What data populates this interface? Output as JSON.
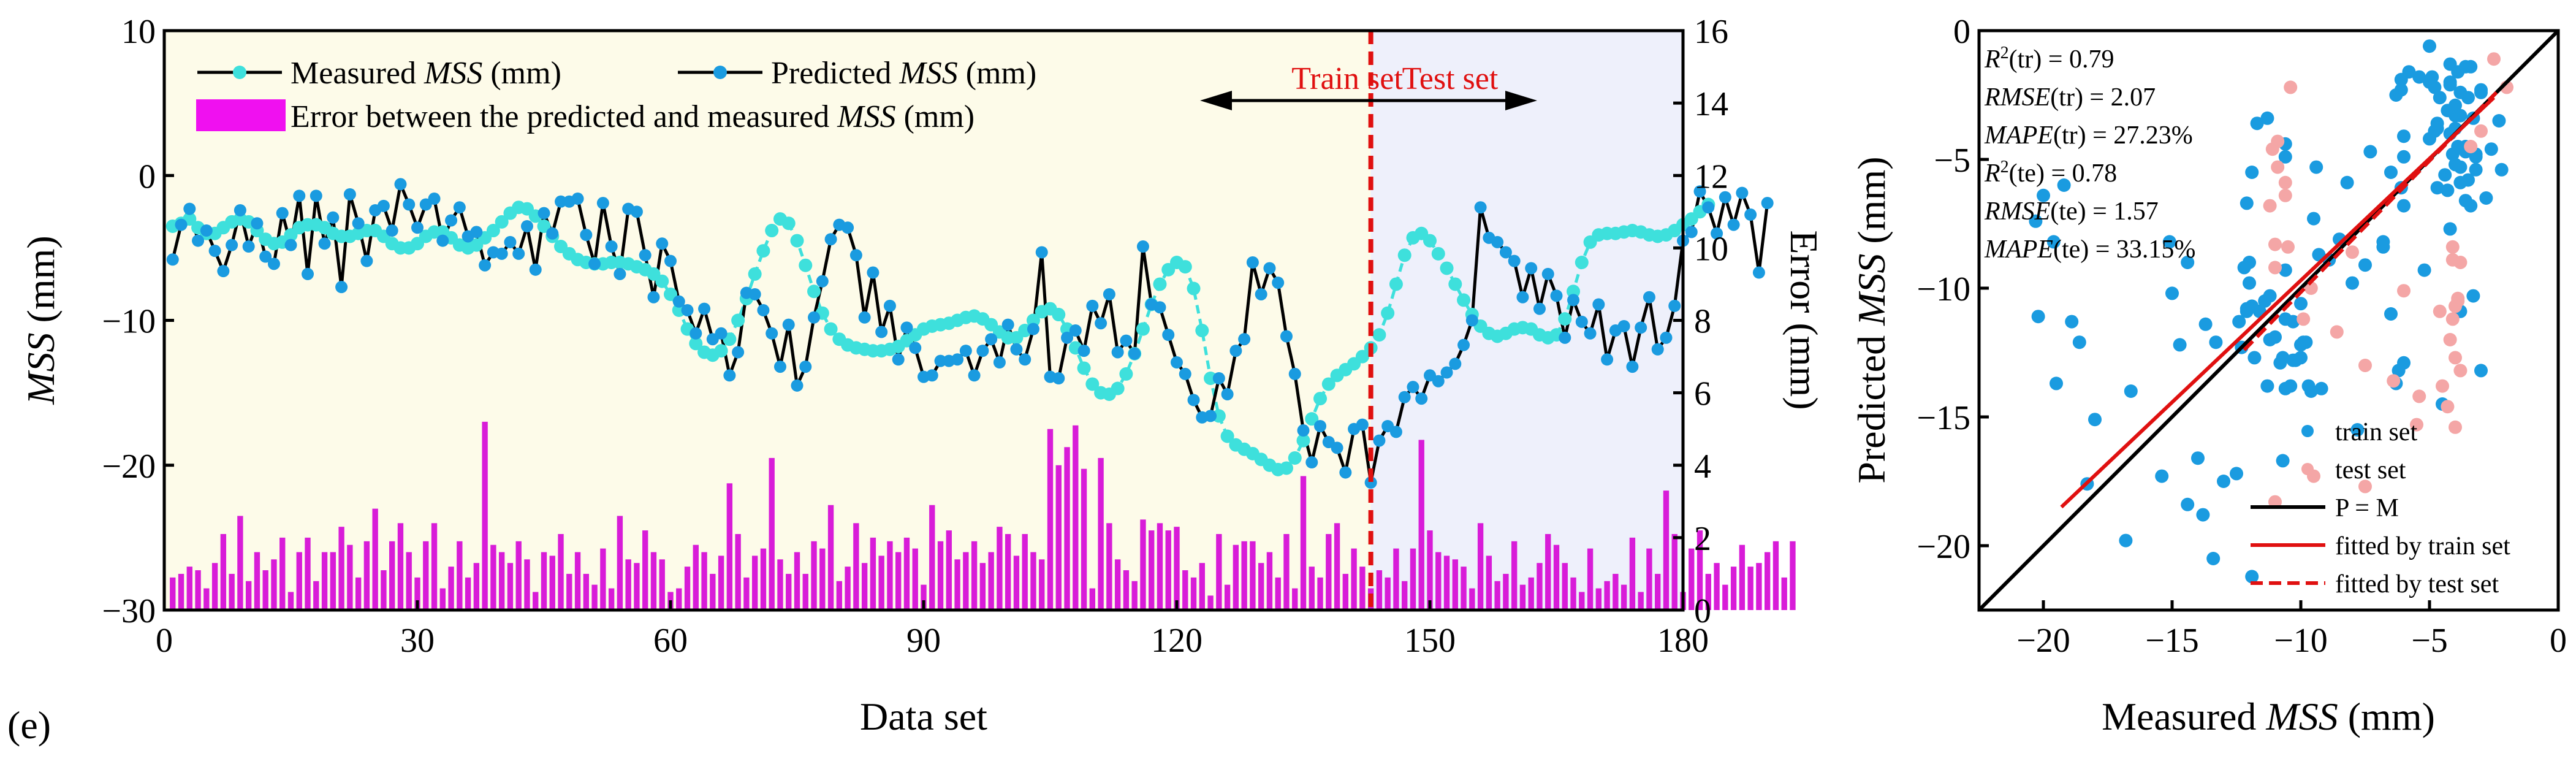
{
  "chart_data": [
    {
      "type": "line+bar",
      "panel_label": "(e)",
      "xlabel": "Data set",
      "ylabel": {
        "pre": "",
        "ital": "MSS",
        "post": " (mm)"
      },
      "y2label": "Error (mm)",
      "xlim": [
        0,
        180
      ],
      "ylim": [
        -30,
        10
      ],
      "y2lim": [
        0,
        16
      ],
      "xticks": [
        0,
        30,
        60,
        90,
        120,
        150,
        180
      ],
      "yticks": [
        -30,
        -20,
        -10,
        0,
        10
      ],
      "y2ticks": [
        0,
        2,
        4,
        6,
        8,
        10,
        12,
        14,
        16
      ],
      "split_at": 143,
      "train_label": "Train set",
      "test_label": "Test set",
      "colors": {
        "train_bg": "#fdfbe9",
        "test_bg": "#eef0fb",
        "measured": "#3ee0dc",
        "predicted": "#1a9be0",
        "error_bar": "#d81cd8",
        "split_line": "#e01010"
      },
      "legend": [
        {
          "pre": "Measured ",
          "ital": "MSS",
          "post": " (mm)"
        },
        {
          "pre": "Predicted ",
          "ital": "MSS",
          "post": " (mm)"
        },
        {
          "pre": "Error between the predicted and measured ",
          "ital": "MSS",
          "post": " (mm)"
        }
      ],
      "measured": [
        -3.5,
        -3.3,
        -3.0,
        -3.6,
        -4.0,
        -4.0,
        -3.6,
        -3.2,
        -3.0,
        -3.2,
        -3.8,
        -4.4,
        -4.7,
        -4.6,
        -4.1,
        -3.6,
        -3.4,
        -3.4,
        -3.6,
        -4.0,
        -4.2,
        -4.2,
        -4.0,
        -3.8,
        -3.8,
        -4.2,
        -4.7,
        -5.0,
        -5.0,
        -4.7,
        -4.2,
        -3.9,
        -3.9,
        -4.3,
        -4.8,
        -5.0,
        -4.8,
        -4.3,
        -3.8,
        -3.2,
        -2.6,
        -2.2,
        -2.3,
        -2.8,
        -3.5,
        -4.2,
        -4.9,
        -5.4,
        -5.8,
        -6.0,
        -6.1,
        -6.1,
        -6.0,
        -6.0,
        -6.1,
        -6.3,
        -6.5,
        -6.8,
        -7.3,
        -8.2,
        -9.3,
        -10.6,
        -11.6,
        -12.2,
        -12.4,
        -12.1,
        -11.3,
        -10.0,
        -8.5,
        -6.8,
        -5.2,
        -3.8,
        -3.0,
        -3.3,
        -4.5,
        -6.2,
        -8.0,
        -9.5,
        -10.6,
        -11.3,
        -11.7,
        -11.9,
        -12.0,
        -12.1,
        -12.1,
        -12.0,
        -11.8,
        -11.4,
        -11.0,
        -10.6,
        -10.4,
        -10.3,
        -10.2,
        -10.0,
        -9.8,
        -9.7,
        -9.9,
        -10.3,
        -10.8,
        -11.2,
        -11.2,
        -10.7,
        -10.0,
        -9.4,
        -9.2,
        -9.6,
        -10.6,
        -11.9,
        -13.3,
        -14.4,
        -15.0,
        -15.1,
        -14.7,
        -13.7,
        -12.3,
        -10.6,
        -8.9,
        -7.5,
        -6.5,
        -6.0,
        -6.3,
        -7.8,
        -10.7,
        -14.0,
        -16.6,
        -18.0,
        -18.6,
        -18.9,
        -19.2,
        -19.6,
        -20.0,
        -20.3,
        -20.2,
        -19.5,
        -18.3,
        -16.8,
        -15.4,
        -14.4,
        -13.8,
        -13.4,
        -13.0,
        -12.5,
        -11.9,
        -11.0,
        -9.5,
        -7.5,
        -5.5,
        -4.3,
        -4.0,
        -4.5,
        -5.4,
        -6.4,
        -7.5,
        -8.6,
        -9.6,
        -10.4,
        -10.9,
        -11.1,
        -10.9,
        -10.6,
        -10.5,
        -10.6,
        -11.0,
        -11.2,
        -11.0,
        -9.9,
        -8.0,
        -6.0,
        -4.6,
        -4.1,
        -4.0,
        -4.0,
        -3.9,
        -3.8,
        -3.9,
        -4.1,
        -4.2,
        -4.1,
        -3.8,
        -3.4,
        -3.0,
        -2.5,
        -2.0
      ],
      "predicted": [
        -5.8,
        -3.4,
        -2.3,
        -4.5,
        -3.8,
        -5.2,
        -6.6,
        -4.8,
        -2.4,
        -4.9,
        -3.3,
        -5.6,
        -6.1,
        -2.6,
        -4.8,
        -1.4,
        -6.8,
        -1.4,
        -4.7,
        -2.9,
        -7.7,
        -1.3,
        -3.3,
        -5.9,
        -2.4,
        -2.1,
        -3.8,
        -0.6,
        -2.0,
        -3.6,
        -2.0,
        -1.6,
        -4.5,
        -3.1,
        -2.2,
        -4.2,
        -3.9,
        -6.2,
        -5.3,
        -5.4,
        -4.6,
        -5.4,
        -3.5,
        -6.5,
        -2.6,
        -4.0,
        -1.8,
        -1.8,
        -1.6,
        -4.1,
        -6.1,
        -1.9,
        -4.9,
        -6.8,
        -2.3,
        -2.5,
        -5.5,
        -8.4,
        -4.7,
        -5.9,
        -8.7,
        -9.3,
        -10.9,
        -9.2,
        -11.3,
        -10.9,
        -13.8,
        -12.2,
        -8.1,
        -8.2,
        -9.3,
        -10.9,
        -13.2,
        -10.3,
        -14.5,
        -13.2,
        -9.8,
        -7.3,
        -4.4,
        -3.4,
        -3.6,
        -5.5,
        -9.8,
        -6.7,
        -10.8,
        -9.0,
        -12.7,
        -10.5,
        -11.9,
        -13.9,
        -13.8,
        -12.8,
        -12.8,
        -12.7,
        -12.1,
        -13.8,
        -12.1,
        -11.3,
        -12.9,
        -10.3,
        -12.0,
        -12.7,
        -10.6,
        -5.3,
        -13.9,
        -14.0,
        -11.2,
        -10.7,
        -12.1,
        -9.0,
        -10.2,
        -8.2,
        -12.2,
        -11.4,
        -12.3,
        -4.9,
        -8.9,
        -9.1,
        -11.0,
        -12.9,
        -13.7,
        -15.5,
        -16.7,
        -16.6,
        -14.0,
        -15.1,
        -12.1,
        -11.3,
        -6.0,
        -8.2,
        -6.4,
        -7.4,
        -11.1,
        -13.7,
        -17.6,
        -19.8,
        -17.3,
        -18.4,
        -18.8,
        -20.5,
        -17.5,
        -17.2,
        -21.2,
        -18.3,
        -17.3,
        -17.7,
        -15.3,
        -14.6,
        -15.4,
        -13.8,
        -14.2,
        -13.6,
        -13.0,
        -11.7,
        -10.0,
        -2.2,
        -4.3,
        -4.6,
        -5.3,
        -5.9,
        -8.4,
        -6.4,
        -9.2,
        -6.8,
        -8.3,
        -11.2,
        -8.6,
        -10.1,
        -10.9,
        -8.9,
        -12.7,
        -10.7,
        -10.4,
        -13.2,
        -10.5,
        -8.4,
        -12.0,
        -11.2,
        -9.0,
        -4.5,
        -3.9,
        -1.1,
        -2.2,
        -4.0,
        -1.5,
        -3.4,
        -1.2,
        -2.7,
        -6.7,
        -1.9
      ],
      "errors": [
        0.9,
        1.0,
        1.2,
        1.1,
        0.6,
        1.3,
        2.1,
        1.0,
        2.6,
        0.8,
        1.6,
        1.1,
        1.4,
        2.0,
        0.5,
        1.6,
        2.0,
        0.8,
        1.6,
        1.6,
        2.3,
        1.8,
        0.9,
        1.9,
        2.8,
        1.1,
        1.9,
        2.4,
        1.6,
        0.9,
        1.9,
        2.4,
        0.6,
        1.2,
        1.9,
        0.9,
        1.3,
        5.2,
        1.8,
        1.6,
        1.3,
        1.9,
        1.4,
        0.5,
        1.6,
        1.5,
        2.1,
        1.0,
        1.6,
        1.0,
        0.7,
        1.7,
        0.6,
        2.6,
        1.4,
        1.3,
        2.2,
        1.6,
        1.4,
        0.5,
        0.6,
        1.2,
        1.8,
        1.6,
        1.0,
        1.5,
        3.5,
        2.1,
        0.9,
        1.5,
        1.7,
        4.2,
        1.4,
        1.0,
        1.6,
        1.0,
        1.9,
        1.7,
        2.9,
        0.8,
        1.2,
        2.4,
        1.3,
        2.0,
        1.5,
        1.9,
        1.6,
        2.0,
        1.7,
        0.7,
        2.9,
        1.9,
        2.2,
        1.4,
        1.6,
        1.9,
        1.3,
        1.6,
        2.3,
        2.1,
        1.5,
        2.1,
        1.6,
        1.4,
        5.0,
        4.0,
        4.5,
        5.1,
        3.9,
        0.6,
        4.2,
        2.4,
        1.4,
        1.1,
        0.8,
        2.5,
        2.2,
        2.4,
        2.2,
        2.3,
        1.1,
        0.9,
        1.3,
        0.4,
        2.1,
        0.7,
        1.8,
        1.9,
        1.9,
        1.3,
        1.6,
        0.9,
        2.1,
        0.6,
        3.7,
        1.2,
        0.9,
        2.1,
        2.4,
        1.0,
        1.7,
        1.2,
        0.6,
        1.1,
        0.9,
        1.7,
        0.8,
        1.7,
        4.7,
        2.2,
        1.6,
        1.5,
        1.4,
        1.2,
        0.6,
        2.4,
        1.5,
        0.8,
        1.0,
        1.9,
        0.7,
        0.9,
        1.3,
        2.1,
        1.8,
        1.3,
        0.9,
        0.5,
        1.7,
        0.6,
        0.8,
        1.0,
        0.7,
        2.0,
        0.5,
        1.7,
        1.0,
        3.3,
        2.1,
        0.5,
        1.7,
        2.2,
        1.0,
        1.3,
        0.7,
        1.2,
        1.8,
        1.2,
        1.3,
        1.6,
        1.9,
        0.9,
        1.9
      ]
    },
    {
      "type": "scatter",
      "xlabel": {
        "pre": "Measured ",
        "ital": "MSS",
        "post": " (mm)"
      },
      "ylabel": {
        "pre": "Predicted ",
        "ital": "MSS",
        "post": " (mm)"
      },
      "xlim": [
        -22.5,
        0
      ],
      "ylim": [
        -22.5,
        0
      ],
      "xticks": [
        -20,
        -15,
        -10,
        -5,
        0
      ],
      "yticks": [
        -20,
        -15,
        -10,
        -5,
        0
      ],
      "metrics": [
        {
          "name": "R",
          "sup": "2",
          "ital": false,
          "arg": "(tr)",
          "value": "0.79"
        },
        {
          "name": "RMSE",
          "sup": "",
          "ital": true,
          "arg": "(tr)",
          "value": "2.07"
        },
        {
          "name": "MAPE",
          "sup": "",
          "ital": true,
          "arg": "(tr)",
          "value": "27.23%"
        },
        {
          "name": "R",
          "sup": "2",
          "ital": false,
          "arg": "(te)",
          "value": "0.78"
        },
        {
          "name": "RMSE",
          "sup": "",
          "ital": true,
          "arg": "(te)",
          "value": "1.57"
        },
        {
          "name": "MAPE",
          "sup": "",
          "ital": true,
          "arg": "(te)",
          "value": "33.15%"
        }
      ],
      "legend": [
        "train set",
        "test set",
        "P = M",
        "fitted by train set",
        "fitted by test set"
      ],
      "colors": {
        "train": "#1a9be0",
        "test": "#f4a6a6",
        "pm": "#000000",
        "fit_train": "#e01010",
        "fit_test": "#e01010"
      },
      "fit_train": {
        "x": [
          -19.3,
          -2.5
        ],
        "y": [
          -18.5,
          -2.6
        ]
      },
      "fit_test": {
        "x": [
          -12.2,
          -2.4
        ],
        "y": [
          -12.4,
          -2.4
        ]
      }
    }
  ]
}
